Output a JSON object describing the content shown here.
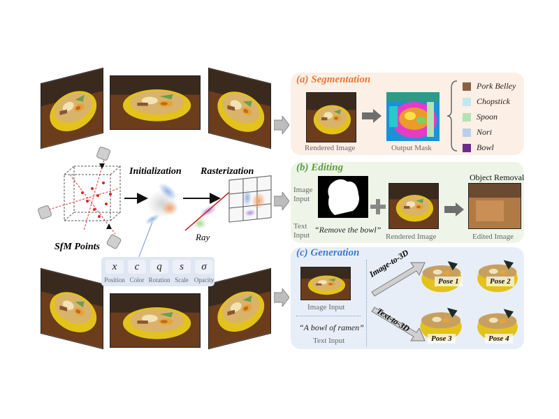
{
  "left": {
    "sfm_label": "SfM Points",
    "init_label": "Initialization",
    "raster_label": "Rasterization",
    "ray_label": "Ray",
    "params": [
      {
        "symbol": "x",
        "label": "Position"
      },
      {
        "symbol": "c",
        "label": "Color"
      },
      {
        "symbol": "q",
        "label": "Rotation"
      },
      {
        "symbol": "s",
        "label": "Scale"
      },
      {
        "symbol": "σ",
        "label": "Opacity"
      }
    ]
  },
  "segmentation": {
    "title": "(a) Segmentation",
    "rendered_label": "Rendered Image",
    "mask_label": "Output Mask",
    "legend": [
      {
        "label": "Pork Belley",
        "color": "#8a6146"
      },
      {
        "label": "Chopstick",
        "color": "#bfe8ef"
      },
      {
        "label": "Spoon",
        "color": "#b4e3b2"
      },
      {
        "label": "Nori",
        "color": "#b9cfe8"
      },
      {
        "label": "Bowl",
        "color": "#6d2a8f"
      }
    ]
  },
  "editing": {
    "title": "(b) Editing",
    "image_input_label": "Image Input",
    "text_input_label": "Text Input",
    "prompt": "“Remove the bowl”",
    "rendered_label": "Rendered Image",
    "object_removal_label": "Object Removal",
    "edited_label": "Edited Image"
  },
  "generation": {
    "title": "(c) Generation",
    "image_input_label": "Image Input",
    "prompt": "“A bowl of ramen”",
    "text_input_label": "Text Input",
    "img_to_3d": "Image-to-3D",
    "text_to_3d": "Text-to-3D",
    "poses": [
      "Pose 1",
      "Pose 2",
      "Pose 3",
      "Pose 4"
    ]
  },
  "colors": {
    "seg_bg": "#fcefe6",
    "seg_title": "#e07b39",
    "edit_bg": "#eef5e8",
    "edit_title": "#5f9b41",
    "gen_bg": "#e8eef7",
    "gen_title": "#3d7cc9"
  }
}
